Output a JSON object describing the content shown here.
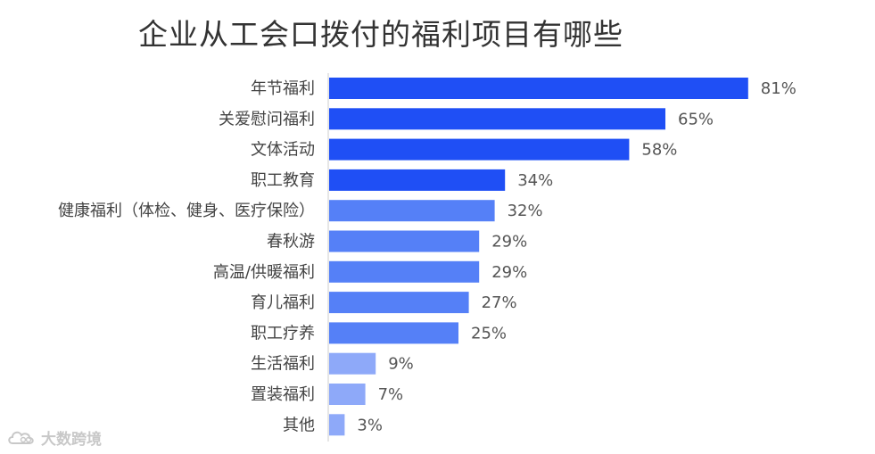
{
  "chart_data": {
    "type": "bar",
    "orientation": "horizontal",
    "title": "企业从工会口拨付的福利项目有哪些",
    "categories": [
      "年节福利",
      "关爱慰问福利",
      "文体活动",
      "职工教育",
      "健康福利（体检、健身、医疗保险）",
      "春秋游",
      "高温/供暖福利",
      "育儿福利",
      "职工疗养",
      "生活福利",
      "置装福利",
      "其他"
    ],
    "values": [
      81,
      65,
      58,
      34,
      32,
      29,
      29,
      27,
      25,
      9,
      7,
      3
    ],
    "value_labels": [
      "81%",
      "65%",
      "58%",
      "34%",
      "32%",
      "29%",
      "29%",
      "27%",
      "25%",
      "9%",
      "7%",
      "3%"
    ],
    "unit": "%",
    "xlim": [
      0,
      100
    ],
    "grid": false,
    "colors": {
      "tier1": "#1f4ff5",
      "tier2": "#5580f7",
      "tier3": "#8ea9f9"
    },
    "color_tiers": [
      "tier1",
      "tier1",
      "tier1",
      "tier1",
      "tier2",
      "tier2",
      "tier2",
      "tier2",
      "tier2",
      "tier3",
      "tier3",
      "tier3"
    ]
  },
  "watermark": {
    "text": "大数跨境",
    "icon": "cloud-logo-icon"
  }
}
